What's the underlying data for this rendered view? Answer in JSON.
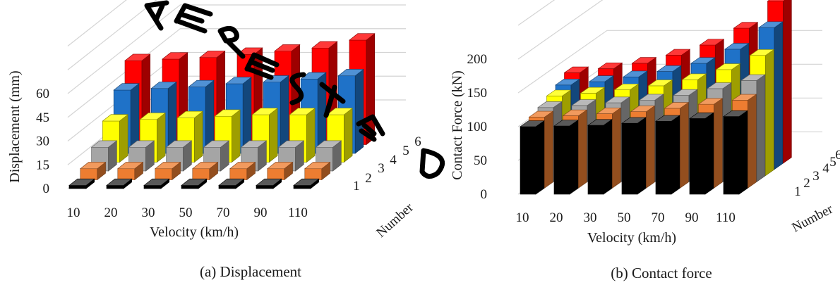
{
  "colors": {
    "series": [
      "#000000",
      "#ed7d31",
      "#a5a5a5",
      "#ffff00",
      "#1f72c8",
      "#ff0000"
    ],
    "grid": "#d4d4d4"
  },
  "chart_data": [
    {
      "type": "bar",
      "subtype": "3d-column",
      "caption": "(a) Displacement",
      "xlabel": "Velocity (km/h)",
      "ylabel": "Displacement (mm)",
      "zlabel": "Number",
      "categories": [
        "10",
        "20",
        "30",
        "50",
        "70",
        "90",
        "110"
      ],
      "depth_labels": [
        "1",
        "2",
        "3",
        "4",
        "5",
        "6"
      ],
      "yticks": [
        "0",
        "15",
        "30",
        "45",
        "60"
      ],
      "ylim": [
        0,
        90
      ],
      "grid": true,
      "series": [
        {
          "name": "1",
          "values": [
            2,
            2,
            2,
            2,
            2,
            2,
            2
          ]
        },
        {
          "name": "2",
          "values": [
            7,
            7,
            7,
            7,
            7,
            7,
            7
          ]
        },
        {
          "name": "3",
          "values": [
            15,
            15,
            15,
            15,
            15,
            15,
            15
          ]
        },
        {
          "name": "4",
          "values": [
            26,
            27,
            28,
            29,
            30,
            30,
            30
          ]
        },
        {
          "name": "5",
          "values": [
            40,
            41,
            42,
            44,
            45,
            47,
            49
          ]
        },
        {
          "name": "6",
          "values": [
            53,
            54,
            55,
            57,
            59,
            61,
            66
          ]
        }
      ]
    },
    {
      "type": "bar",
      "subtype": "3d-column",
      "caption": "(b) Contact force",
      "xlabel": "Velocity (km/h)",
      "ylabel": "Contact Force (kN)",
      "zlabel": "Number",
      "categories": [
        "10",
        "20",
        "30",
        "50",
        "70",
        "90",
        "110"
      ],
      "depth_labels": [
        "1",
        "2",
        "3",
        "4",
        "5",
        "6"
      ],
      "yticks": [
        "0",
        "50",
        "100",
        "150",
        "200"
      ],
      "ylim": [
        0,
        250
      ],
      "grid": true,
      "series": [
        {
          "name": "1",
          "values": [
            100,
            101,
            102,
            105,
            108,
            112,
            115
          ]
        },
        {
          "name": "2",
          "values": [
            105,
            107,
            110,
            113,
            118,
            124,
            130
          ]
        },
        {
          "name": "3",
          "values": [
            110,
            113,
            117,
            121,
            128,
            138,
            150
          ]
        },
        {
          "name": "4",
          "values": [
            118,
            122,
            127,
            133,
            142,
            157,
            178
          ]
        },
        {
          "name": "5",
          "values": [
            125,
            130,
            137,
            145,
            157,
            178,
            210
          ]
        },
        {
          "name": "6",
          "values": [
            134,
            140,
            148,
            160,
            175,
            200,
            240
          ]
        }
      ]
    }
  ]
}
